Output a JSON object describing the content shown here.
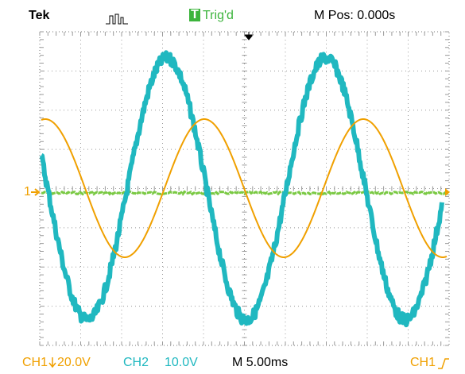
{
  "header": {
    "brand": "Tek",
    "trigger_icon": "T",
    "trigger_status": "Trig'd",
    "position": "M Pos: 0.000s"
  },
  "markers": {
    "ch1_ground": "1"
  },
  "footer": {
    "ch1": "CH1",
    "ch1_scale": "20.0V",
    "ch2": "CH2",
    "ch2_scale": "10.0V",
    "timebase": "M 5.00ms",
    "trigger_source": "CH1"
  }
}
